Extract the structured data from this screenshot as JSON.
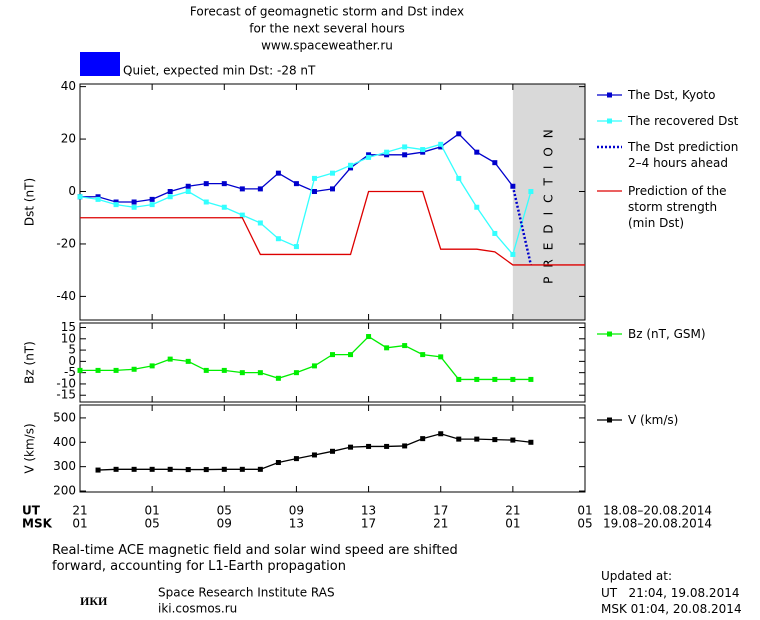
{
  "header": {
    "title": "Forecast of geomagnetic storm and Dst index",
    "subtitle": "for the next several hours",
    "url": "www.spaceweather.ru",
    "status": "Quiet, expected min Dst: -28 nT",
    "status_color": "#0000ff"
  },
  "time_axis": {
    "xlim": [
      0,
      28
    ],
    "ut_label": "UT",
    "ut_range": "18.08–20.08.2014",
    "ut_ticks": [
      {
        "value": 0,
        "label": "21"
      },
      {
        "value": 4,
        "label": "01"
      },
      {
        "value": 8,
        "label": "05"
      },
      {
        "value": 12,
        "label": "09"
      },
      {
        "value": 16,
        "label": "13"
      },
      {
        "value": 20,
        "label": "17"
      },
      {
        "value": 24,
        "label": "21"
      },
      {
        "value": 28,
        "label": "01"
      }
    ],
    "msk_label": "MSK",
    "msk_range": "19.08–20.08.2014",
    "msk_ticks": [
      {
        "value": 0,
        "label": "01"
      },
      {
        "value": 4,
        "label": "05"
      },
      {
        "value": 8,
        "label": "09"
      },
      {
        "value": 12,
        "label": "13"
      },
      {
        "value": 16,
        "label": "17"
      },
      {
        "value": 20,
        "label": "21"
      },
      {
        "value": 24,
        "label": "01"
      },
      {
        "value": 28,
        "label": "05"
      }
    ]
  },
  "chart_data": [
    {
      "type": "line",
      "y_label": "Dst (nT)",
      "ylim": [
        -49,
        41
      ],
      "yticks": [
        40,
        20,
        0,
        -20,
        -40
      ],
      "prediction_zone": {
        "xlim": [
          24,
          28
        ],
        "label": "PREDICTION",
        "color": "#d9d9d9"
      },
      "series": [
        {
          "name": "The Dst, Kyoto",
          "color": "#0000cc",
          "style": "solid",
          "marker": "square",
          "x": [
            0,
            1,
            2,
            3,
            4,
            5,
            6,
            7,
            8,
            9,
            10,
            11,
            12,
            13,
            14,
            15,
            16,
            17,
            18,
            19,
            20,
            21,
            22,
            23,
            24
          ],
          "values": [
            -2,
            -2,
            -4,
            -4,
            -3,
            0,
            2,
            3,
            3,
            1,
            1,
            7,
            3,
            0,
            1,
            9,
            14,
            14,
            14,
            15,
            17,
            22,
            15,
            11,
            2
          ]
        },
        {
          "name": "The recovered Dst",
          "color": "#33ffff",
          "style": "solid",
          "marker": "square",
          "x": [
            0,
            1,
            2,
            3,
            4,
            5,
            6,
            7,
            8,
            9,
            10,
            11,
            12,
            13,
            14,
            15,
            16,
            17,
            18,
            19,
            20,
            21,
            22,
            23,
            24,
            25
          ],
          "values": [
            -2,
            -3,
            -5,
            -6,
            -5,
            -2,
            0,
            -4,
            -6,
            -9,
            -12,
            -18,
            -21,
            5,
            7,
            10,
            13,
            15,
            17,
            16,
            18,
            5,
            -6,
            -16,
            -24,
            0
          ]
        },
        {
          "name": "The Dst prediction\n2–4 hours ahead",
          "color": "#0000cc",
          "style": "dotted",
          "marker": "none",
          "x": [
            24,
            25
          ],
          "values": [
            2,
            -28
          ]
        },
        {
          "name": "Prediction of the\nstorm strength\n(min Dst)",
          "color": "#dd0000",
          "style": "solid",
          "marker": "none",
          "x": [
            0,
            9,
            10,
            15,
            16,
            19,
            20,
            22,
            23,
            24,
            28
          ],
          "values": [
            -10,
            -10,
            -24,
            -24,
            0,
            0,
            -22,
            -22,
            -23,
            -28,
            -28
          ]
        }
      ]
    },
    {
      "type": "line",
      "y_label": "Bz (nT)",
      "ylim": [
        -18,
        17
      ],
      "yticks": [
        15,
        10,
        5,
        0,
        -5,
        -10,
        -15
      ],
      "series": [
        {
          "name": "Bz (nT, GSM)",
          "color": "#00ee00",
          "style": "solid",
          "marker": "square",
          "x": [
            0,
            1,
            2,
            3,
            4,
            5,
            6,
            7,
            8,
            9,
            10,
            11,
            12,
            13,
            14,
            15,
            16,
            17,
            18,
            19,
            20,
            21,
            22,
            23,
            24,
            25
          ],
          "values": [
            -4,
            -4,
            -4,
            -3.5,
            -2,
            1,
            0,
            -4,
            -4,
            -5,
            -5,
            -7.5,
            -5,
            -2,
            3,
            3,
            11,
            6,
            7,
            3,
            2,
            -8,
            -8,
            -8,
            -8,
            -8
          ]
        }
      ]
    },
    {
      "type": "line",
      "y_label": "V (km/s)",
      "ylim": [
        196,
        553
      ],
      "yticks": [
        500,
        400,
        300,
        200
      ],
      "series": [
        {
          "name": "V (km/s)",
          "color": "#000000",
          "style": "solid",
          "marker": "square",
          "x": [
            1,
            2,
            3,
            4,
            5,
            6,
            7,
            8,
            9,
            10,
            11,
            12,
            13,
            14,
            15,
            16,
            17,
            18,
            19,
            20,
            21,
            22,
            23,
            24,
            25
          ],
          "values": [
            286,
            289,
            289,
            289,
            289,
            288,
            288,
            289,
            289,
            289,
            317,
            333,
            348,
            363,
            380,
            383,
            383,
            385,
            415,
            435,
            413,
            413,
            411,
            409,
            400
          ]
        }
      ]
    }
  ],
  "footer": {
    "note": "Real-time ACE magnetic field and solar wind speed are shifted\nforward, accounting for L1-Earth propagation",
    "logo": "ИКИ",
    "institute": "Space Research Institute RAS",
    "site": "iki.cosmos.ru",
    "updated_label": "Updated at:",
    "updated_ut": "UT   21:04, 19.08.2014",
    "updated_msk": "MSK 01:04, 20.08.2014"
  }
}
